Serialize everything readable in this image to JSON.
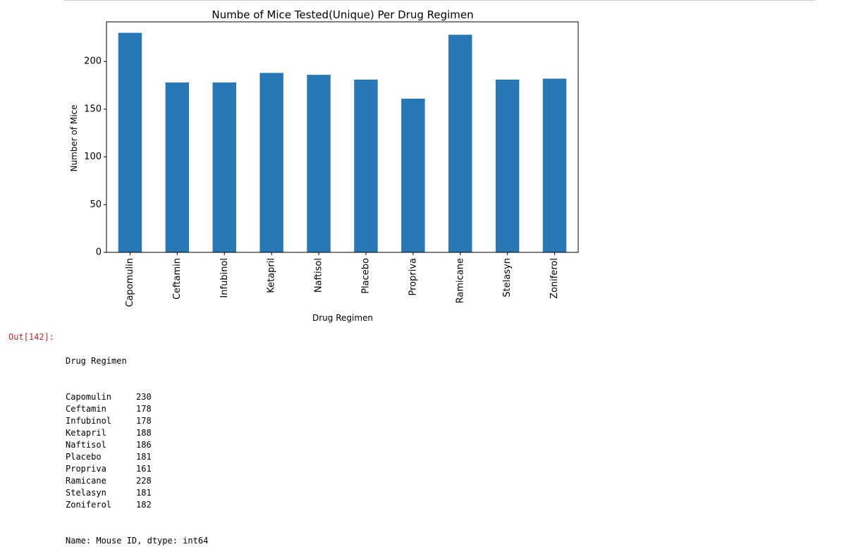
{
  "output": {
    "prompt": "Out[142]:",
    "header": "Drug Regimen",
    "footer": "Name: Mouse ID, dtype: int64"
  },
  "colors": {
    "bar": "#2878b5",
    "prompt": "#b22b31",
    "axis": "#000000"
  },
  "chart_data": {
    "type": "bar",
    "title": "Numbe of Mice Tested(Unique) Per Drug Regimen",
    "xlabel": "Drug Regimen",
    "ylabel": "Number of Mice",
    "categories": [
      "Capomulin",
      "Ceftamin",
      "Infubinol",
      "Ketapril",
      "Naftisol",
      "Placebo",
      "Propriva",
      "Ramicane",
      "Stelasyn",
      "Zoniferol"
    ],
    "values": [
      230,
      178,
      178,
      188,
      186,
      181,
      161,
      228,
      181,
      182
    ],
    "yticks": [
      0,
      50,
      100,
      150,
      200
    ],
    "ylim": [
      0,
      241.5
    ],
    "grid": false,
    "legend": "none"
  }
}
